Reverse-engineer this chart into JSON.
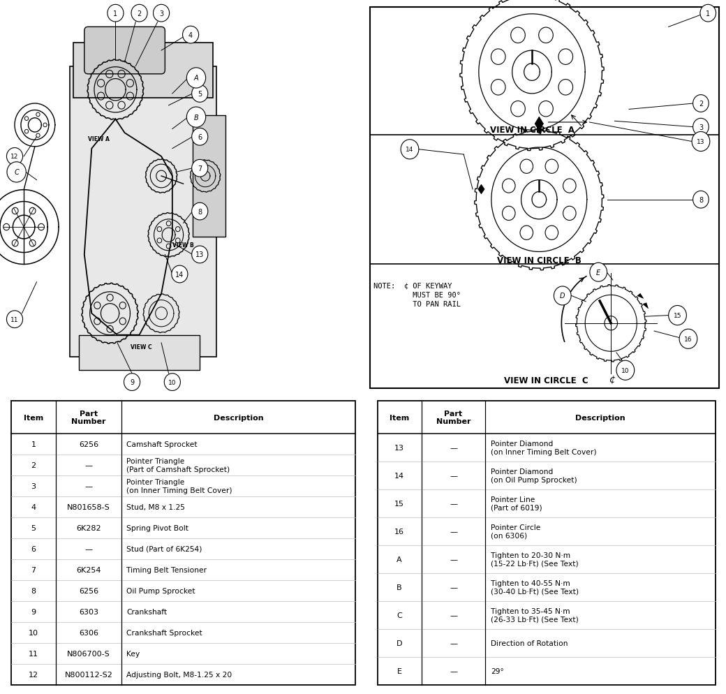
{
  "bg_color": "#ffffff",
  "table1_rows": [
    [
      "1",
      "6256",
      "Camshaft Sprocket"
    ],
    [
      "2",
      "—",
      "Pointer Triangle\n(Part of Camshaft Sprocket)"
    ],
    [
      "3",
      "—",
      "Pointer Triangle\n(on Inner Timing Belt Cover)"
    ],
    [
      "4",
      "N801658-S",
      "Stud, M8 x 1.25"
    ],
    [
      "5",
      "6K282",
      "Spring Pivot Bolt"
    ],
    [
      "6",
      "—",
      "Stud (Part of 6K254)"
    ],
    [
      "7",
      "6K254",
      "Timing Belt Tensioner"
    ],
    [
      "8",
      "6256",
      "Oil Pump Sprocket"
    ],
    [
      "9",
      "6303",
      "Crankshaft"
    ],
    [
      "10",
      "6306",
      "Crankshaft Sprocket"
    ],
    [
      "11",
      "N806700-S",
      "Key"
    ],
    [
      "12",
      "N800112-S2",
      "Adjusting Bolt, M8-1.25 x 20"
    ]
  ],
  "table2_rows": [
    [
      "13",
      "—",
      "Pointer Diamond\n(on Inner Timing Belt Cover)"
    ],
    [
      "14",
      "—",
      "Pointer Diamond\n(on Oil Pump Sprocket)"
    ],
    [
      "15",
      "—",
      "Pointer Line\n(Part of 6019)"
    ],
    [
      "16",
      "—",
      "Pointer Circle\n(on 6306)"
    ],
    [
      "A",
      "—",
      "Tighten to 20-30 N·m\n(15-22 Lb·Ft) (See Text)"
    ],
    [
      "B",
      "—",
      "Tighten to 40-55 N·m\n(30-40 Lb·Ft) (See Text)"
    ],
    [
      "C",
      "—",
      "Tighten to 35-45 N·m\n(26-33 Lb·Ft) (See Text)"
    ],
    [
      "D",
      "—",
      "Direction of Rotation"
    ],
    [
      "E",
      "—",
      "29°"
    ]
  ],
  "view_a_label": "VIEW IN CIRCLE  A",
  "view_b_label": "VIEW IN CIRCLE  B",
  "view_c_label": "VIEW IN CIRCLE  C",
  "note_line1": "NOTE:  ¢ OF KEYWAY",
  "note_line2": "         MUST BE 90°",
  "note_line3": "         TO PAN RAIL"
}
